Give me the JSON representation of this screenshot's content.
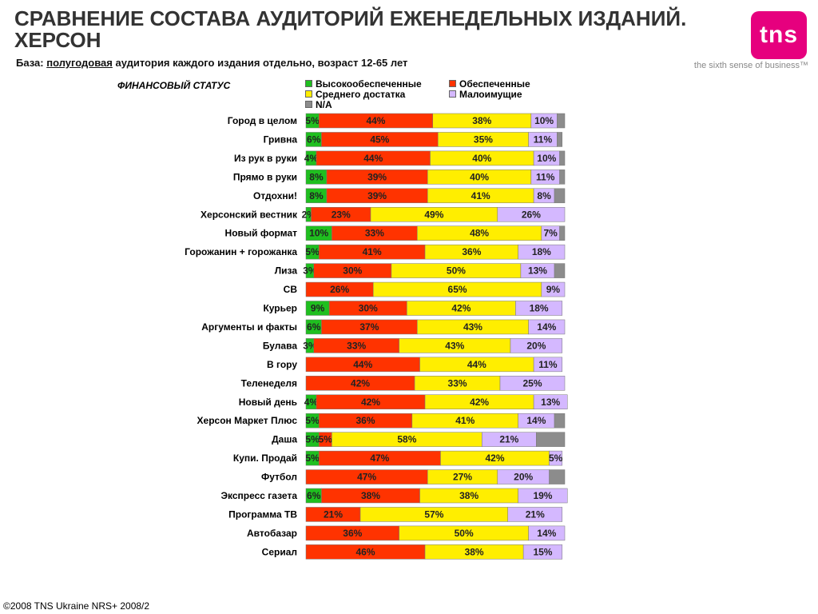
{
  "header": {
    "title_line1": "СРАВНЕНИЕ СОСТАВА АУДИТОРИЙ ЕЖЕНЕДЕЛЬНЫХ ИЗДАНИЙ.",
    "title_line2": "ХЕРСОН",
    "subtitle_prefix": "База:",
    "subtitle_underlined": "полугодовая",
    "subtitle_rest": "аудитория каждого издания отдельно, возраст 12-65 лет",
    "logo_text": "tns",
    "tagline": "the sixth sense of business™"
  },
  "footer": {
    "text": "©2008 TNS Ukraine  NRS+ 2008/2"
  },
  "colors": {
    "accent_logo": "#e6007e",
    "high": "#1fbf1f",
    "secured": "#ff3300",
    "middle": "#ffee00",
    "low": "#d4b8ff",
    "na": "#8c8c8c"
  },
  "chart_data": {
    "type": "bar",
    "orientation": "horizontal",
    "stacked": true,
    "percent": true,
    "title": "ФИНАНСОВЫЙ СТАТУС",
    "xlim": [
      0,
      100
    ],
    "categories": [
      "Город в целом",
      "Гривна",
      "Из рук в руки",
      "Прямо в руки",
      "Отдохни!",
      "Херсонский вестник",
      "Новый формат",
      "Горожанин + горожанка",
      "Лиза",
      "СВ",
      "Курьер",
      "Аргументы и факты",
      "Булава",
      "В гору",
      "Теленеделя",
      "Новый день",
      "Херсон Маркет Плюс",
      "Даша",
      "Купи. Продай",
      "Футбол",
      "Экспресс газета",
      "Программа ТВ",
      "Автобазар",
      "Сериал"
    ],
    "series": [
      {
        "name": "Высокообеспеченные",
        "color": "#1fbf1f",
        "values": [
          5,
          6,
          4,
          8,
          8,
          2,
          10,
          5,
          3,
          0,
          9,
          6,
          3,
          0,
          0,
          4,
          5,
          5,
          5,
          0,
          6,
          0,
          0,
          0
        ],
        "labels": [
          "5%",
          "6%",
          "4%",
          "8%",
          "8%",
          "2%",
          "10%",
          "5%",
          "3%",
          "",
          "9%",
          "6%",
          "3%",
          "",
          "",
          "4%",
          "5%",
          "5%",
          "5%",
          "",
          "6%",
          "",
          "",
          ""
        ]
      },
      {
        "name": "Обеспеченные",
        "color": "#ff3300",
        "values": [
          44,
          45,
          44,
          39,
          39,
          23,
          33,
          41,
          30,
          26,
          30,
          37,
          33,
          44,
          42,
          42,
          36,
          5,
          47,
          47,
          38,
          21,
          36,
          46
        ],
        "labels": [
          "44%",
          "45%",
          "44%",
          "39%",
          "39%",
          "23%",
          "33%",
          "41%",
          "30%",
          "26%",
          "30%",
          "37%",
          "33%",
          "44%",
          "42%",
          "42%",
          "36%",
          "5%",
          "47%",
          "47%",
          "38%",
          "21%",
          "36%",
          "46%"
        ]
      },
      {
        "name": "Среднего достатка",
        "color": "#ffee00",
        "values": [
          38,
          35,
          40,
          40,
          41,
          49,
          48,
          36,
          50,
          65,
          42,
          43,
          43,
          44,
          33,
          42,
          41,
          58,
          42,
          27,
          38,
          57,
          50,
          38
        ],
        "labels": [
          "38%",
          "35%",
          "40%",
          "40%",
          "41%",
          "49%",
          "48%",
          "36%",
          "50%",
          "65%",
          "42%",
          "43%",
          "43%",
          "44%",
          "33%",
          "42%",
          "41%",
          "58%",
          "42%",
          "27%",
          "38%",
          "57%",
          "50%",
          "38%"
        ]
      },
      {
        "name": "Малоимущие",
        "color": "#d4b8ff",
        "values": [
          10,
          11,
          10,
          11,
          8,
          26,
          7,
          18,
          13,
          9,
          18,
          14,
          20,
          11,
          25,
          13,
          14,
          21,
          5,
          20,
          19,
          21,
          14,
          15
        ],
        "labels": [
          "10%",
          "11%",
          "10%",
          "11%",
          "8%",
          "26%",
          "7%",
          "18%",
          "13%",
          "9%",
          "18%",
          "14%",
          "20%",
          "11%",
          "25%",
          "13%",
          "14%",
          "21%",
          "5%",
          "20%",
          "19%",
          "21%",
          "14%",
          "15%"
        ]
      },
      {
        "name": "N/A",
        "color": "#8c8c8c",
        "values": [
          3,
          2,
          2,
          2,
          4,
          0,
          2,
          0,
          4,
          0,
          0,
          0,
          0,
          0,
          0,
          0,
          4,
          11,
          0,
          6,
          0,
          0,
          0,
          0
        ],
        "labels": [
          "",
          "",
          "",
          "",
          "",
          "",
          "",
          "",
          "",
          "",
          "",
          "",
          "",
          "",
          "",
          "",
          "",
          "",
          "",
          "",
          "",
          "",
          "",
          ""
        ]
      }
    ],
    "legend": {
      "position": "top",
      "columns": 2
    }
  }
}
